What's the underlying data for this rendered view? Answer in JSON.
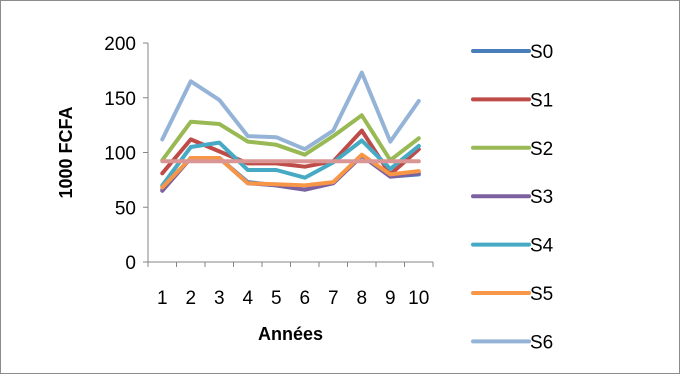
{
  "chart_data": {
    "type": "line",
    "title": "",
    "xlabel": "Années",
    "ylabel": "1000 FCFA",
    "x": [
      "1",
      "2",
      "3",
      "4",
      "5",
      "6",
      "7",
      "8",
      "9",
      "10"
    ],
    "ylim": [
      0,
      200
    ],
    "yticks": [
      "0",
      "50",
      "100",
      "150",
      "200"
    ],
    "grid": false,
    "legend_position": "right",
    "series": [
      {
        "name": "S0",
        "color": "#4a7ebb",
        "values": [
          66,
          95,
          95,
          73,
          70,
          66,
          72,
          97,
          78,
          80
        ]
      },
      {
        "name": "S1",
        "color": "#be4b48",
        "values": [
          81,
          112,
          101,
          90,
          90,
          87,
          92,
          120,
          80,
          103
        ]
      },
      {
        "name": "S2",
        "color": "#98b954",
        "values": [
          93,
          128,
          126,
          110,
          107,
          98,
          115,
          134,
          93,
          113
        ]
      },
      {
        "name": "S3",
        "color": "#7d60a0",
        "values": [
          65,
          95,
          95,
          72,
          70,
          66,
          72,
          97,
          78,
          81
        ]
      },
      {
        "name": "S4",
        "color": "#46aac4",
        "values": [
          70,
          105,
          109,
          84,
          84,
          77,
          91,
          111,
          85,
          106
        ]
      },
      {
        "name": "S5",
        "color": "#f79646",
        "values": [
          68,
          95,
          95,
          72,
          71,
          70,
          73,
          98,
          80,
          83
        ]
      },
      {
        "name": "S6",
        "color": "#95b3d7",
        "values": [
          112,
          165,
          148,
          115,
          114,
          103,
          120,
          173,
          110,
          147
        ]
      },
      {
        "name": "",
        "color": "#d99694",
        "values": [
          92,
          92,
          92,
          92,
          92,
          92,
          92,
          92,
          92,
          92
        ]
      }
    ]
  }
}
